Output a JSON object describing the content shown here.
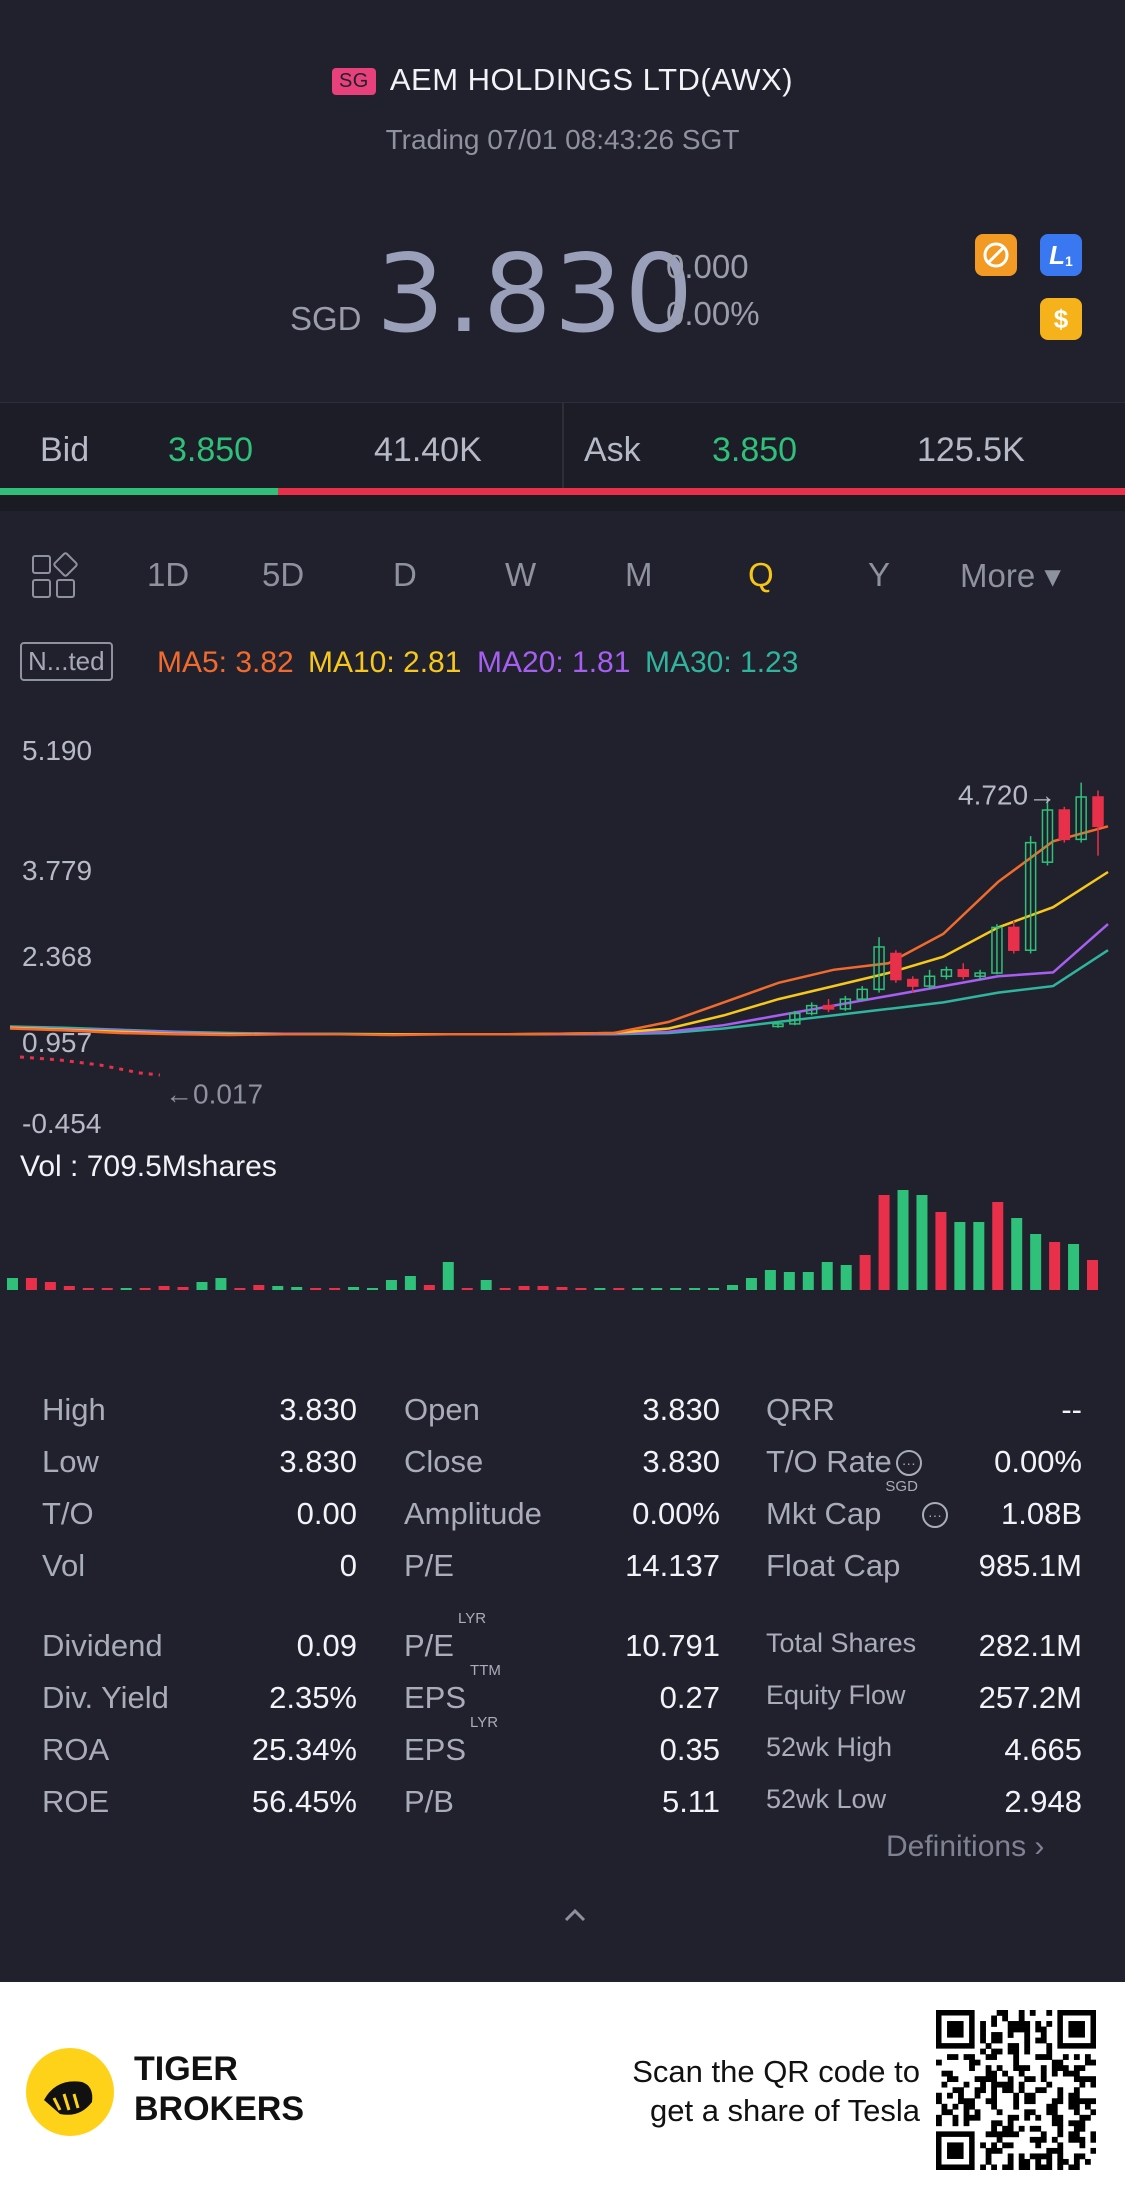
{
  "header": {
    "market_badge": "SG",
    "title": "AEM HOLDINGS LTD(AWX)",
    "status": "Trading 07/01 08:43:26 SGT"
  },
  "quote": {
    "currency": "SGD",
    "price": "3.830",
    "change": "0.000",
    "change_pct": "0.00%",
    "icons": [
      "no-short-sell-icon",
      "level1-icon",
      "dollar-icon"
    ],
    "icon_l1_text": "L",
    "icon_usd_text": "$"
  },
  "bidask": {
    "bid_label": "Bid",
    "bid_price": "3.850",
    "bid_size": "41.40K",
    "ask_label": "Ask",
    "ask_price": "3.850",
    "ask_size": "125.5K",
    "bid_ratio": 0.25
  },
  "tabs": {
    "items": [
      "1D",
      "5D",
      "D",
      "W",
      "M",
      "Q",
      "Y"
    ],
    "active": "Q",
    "more": "More ▾"
  },
  "indicators": {
    "adjust_label": "N...ted",
    "ma5": "MA5: 3.82",
    "ma10": "MA10: 2.81",
    "ma20": "MA20: 1.81",
    "ma30": "MA30: 1.23",
    "colors": {
      "ma5": "#f26b2c",
      "ma10": "#f7c81b",
      "ma20": "#a65ff0",
      "ma30": "#2fb59e"
    }
  },
  "chart_data": {
    "type": "candlestick",
    "y_ticks": [
      "5.190",
      "3.779",
      "2.368",
      "0.957",
      "-0.454"
    ],
    "ylim": [
      -0.454,
      5.19
    ],
    "max_label": "4.720→",
    "min_label": "←0.017",
    "recent_candles": [
      {
        "o": 0.98,
        "c": 1.02,
        "h": 1.05,
        "l": 0.96
      },
      {
        "o": 1.02,
        "c": 1.18,
        "h": 1.22,
        "l": 1.0
      },
      {
        "o": 1.18,
        "c": 1.3,
        "h": 1.35,
        "l": 1.15
      },
      {
        "o": 1.3,
        "c": 1.25,
        "h": 1.4,
        "l": 1.2
      },
      {
        "o": 1.25,
        "c": 1.4,
        "h": 1.45,
        "l": 1.22
      },
      {
        "o": 1.4,
        "c": 1.55,
        "h": 1.6,
        "l": 1.38
      },
      {
        "o": 1.55,
        "c": 2.2,
        "h": 2.35,
        "l": 1.5
      },
      {
        "o": 2.1,
        "c": 1.7,
        "h": 2.15,
        "l": 1.65
      },
      {
        "o": 1.7,
        "c": 1.6,
        "h": 1.75,
        "l": 1.5
      },
      {
        "o": 1.6,
        "c": 1.75,
        "h": 1.85,
        "l": 1.55
      },
      {
        "o": 1.75,
        "c": 1.85,
        "h": 1.9,
        "l": 1.7
      },
      {
        "o": 1.85,
        "c": 1.75,
        "h": 1.95,
        "l": 1.7
      },
      {
        "o": 1.75,
        "c": 1.8,
        "h": 1.85,
        "l": 1.7
      },
      {
        "o": 1.8,
        "c": 2.5,
        "h": 2.55,
        "l": 1.78
      },
      {
        "o": 2.5,
        "c": 2.15,
        "h": 2.6,
        "l": 2.1
      },
      {
        "o": 2.15,
        "c": 3.8,
        "h": 3.9,
        "l": 2.1
      },
      {
        "o": 3.5,
        "c": 4.3,
        "h": 4.45,
        "l": 3.45
      },
      {
        "o": 4.3,
        "c": 3.85,
        "h": 4.35,
        "l": 3.8
      },
      {
        "o": 3.85,
        "c": 4.5,
        "h": 4.72,
        "l": 3.8
      },
      {
        "o": 4.5,
        "c": 4.05,
        "h": 4.6,
        "l": 3.6
      }
    ],
    "ma5": [
      0.95,
      0.92,
      0.88,
      0.86,
      0.85,
      0.86,
      0.86,
      0.85,
      0.86,
      0.86,
      0.87,
      0.88,
      1.05,
      1.35,
      1.65,
      1.85,
      1.95,
      2.4,
      3.2,
      3.82,
      4.05
    ],
    "ma10": [
      0.96,
      0.93,
      0.9,
      0.87,
      0.86,
      0.86,
      0.86,
      0.86,
      0.86,
      0.86,
      0.87,
      0.88,
      0.95,
      1.15,
      1.4,
      1.6,
      1.8,
      2.05,
      2.5,
      2.81,
      3.35
    ],
    "ma20": [
      0.97,
      0.94,
      0.92,
      0.89,
      0.87,
      0.87,
      0.86,
      0.86,
      0.86,
      0.86,
      0.86,
      0.87,
      0.9,
      1.0,
      1.15,
      1.3,
      1.45,
      1.6,
      1.75,
      1.81,
      2.55
    ],
    "ma30": [
      0.98,
      0.96,
      0.93,
      0.9,
      0.88,
      0.87,
      0.87,
      0.86,
      0.86,
      0.86,
      0.86,
      0.86,
      0.88,
      0.95,
      1.05,
      1.15,
      1.25,
      1.35,
      1.5,
      1.6,
      2.15
    ],
    "volume_label": "Vol  : 709.5Mshares",
    "volume_bars": [
      {
        "v": 0.12,
        "up": true
      },
      {
        "v": 0.12,
        "up": false
      },
      {
        "v": 0.08,
        "up": false
      },
      {
        "v": 0.04,
        "up": false
      },
      {
        "v": 0.02,
        "up": false
      },
      {
        "v": 0.02,
        "up": false
      },
      {
        "v": 0.02,
        "up": true
      },
      {
        "v": 0.02,
        "up": false
      },
      {
        "v": 0.04,
        "up": false
      },
      {
        "v": 0.03,
        "up": false
      },
      {
        "v": 0.08,
        "up": true
      },
      {
        "v": 0.12,
        "up": true
      },
      {
        "v": 0.02,
        "up": false
      },
      {
        "v": 0.05,
        "up": false
      },
      {
        "v": 0.04,
        "up": true
      },
      {
        "v": 0.03,
        "up": true
      },
      {
        "v": 0.02,
        "up": false
      },
      {
        "v": 0.02,
        "up": false
      },
      {
        "v": 0.03,
        "up": true
      },
      {
        "v": 0.02,
        "up": true
      },
      {
        "v": 0.1,
        "up": true
      },
      {
        "v": 0.14,
        "up": true
      },
      {
        "v": 0.05,
        "up": false
      },
      {
        "v": 0.28,
        "up": true
      },
      {
        "v": 0.02,
        "up": false
      },
      {
        "v": 0.1,
        "up": true
      },
      {
        "v": 0.02,
        "up": false
      },
      {
        "v": 0.04,
        "up": false
      },
      {
        "v": 0.04,
        "up": false
      },
      {
        "v": 0.03,
        "up": false
      },
      {
        "v": 0.02,
        "up": false
      },
      {
        "v": 0.0,
        "up": true
      },
      {
        "v": 0.02,
        "up": false
      },
      {
        "v": 0.0,
        "up": true
      },
      {
        "v": 0.0,
        "up": true
      },
      {
        "v": 0.02,
        "up": true
      },
      {
        "v": 0.02,
        "up": true
      },
      {
        "v": 0.02,
        "up": true
      },
      {
        "v": 0.05,
        "up": true
      },
      {
        "v": 0.12,
        "up": true
      },
      {
        "v": 0.2,
        "up": true
      },
      {
        "v": 0.18,
        "up": true
      },
      {
        "v": 0.18,
        "up": true
      },
      {
        "v": 0.28,
        "up": true
      },
      {
        "v": 0.25,
        "up": true
      },
      {
        "v": 0.35,
        "up": false
      },
      {
        "v": 0.95,
        "up": false
      },
      {
        "v": 1.0,
        "up": true
      },
      {
        "v": 0.95,
        "up": true
      },
      {
        "v": 0.78,
        "up": false
      },
      {
        "v": 0.68,
        "up": true
      },
      {
        "v": 0.68,
        "up": true
      },
      {
        "v": 0.88,
        "up": false
      },
      {
        "v": 0.72,
        "up": true
      },
      {
        "v": 0.56,
        "up": true
      },
      {
        "v": 0.48,
        "up": false
      },
      {
        "v": 0.46,
        "up": true
      },
      {
        "v": 0.3,
        "up": false
      }
    ]
  },
  "stats": {
    "col1": [
      {
        "label": "High",
        "value": "3.830"
      },
      {
        "label": "Low",
        "value": "3.830"
      },
      {
        "label": "T/O",
        "value": "0.00"
      },
      {
        "label": "Vol",
        "value": "0"
      },
      {
        "label": "Dividend",
        "value": "0.09"
      },
      {
        "label": "Div. Yield",
        "value": "2.35%"
      },
      {
        "label": "ROA",
        "value": "25.34%"
      },
      {
        "label": "ROE",
        "value": "56.45%"
      }
    ],
    "col2": [
      {
        "label": "Open",
        "value": "3.830"
      },
      {
        "label": "Close",
        "value": "3.830"
      },
      {
        "label": "Amplitude",
        "value": "0.00%"
      },
      {
        "label": "P/E",
        "value": "14.137"
      },
      {
        "label": "P/E",
        "sup": "LYR",
        "value": "10.791"
      },
      {
        "label": "EPS",
        "sup": "TTM",
        "value": "0.27"
      },
      {
        "label": "EPS",
        "sup": "LYR",
        "value": "0.35"
      },
      {
        "label": "P/B",
        "value": "5.11"
      }
    ],
    "col3": [
      {
        "label": "QRR",
        "value": "--"
      },
      {
        "label": "T/O Rate",
        "value": "0.00%"
      },
      {
        "label": "Mkt Cap",
        "sup": "SGD",
        "value": "1.08B"
      },
      {
        "label": "Float Cap",
        "value": "985.1M"
      },
      {
        "label": "Total Shares",
        "value": "282.1M"
      },
      {
        "label": "Equity Flow",
        "value": "257.2M"
      },
      {
        "label": "52wk High",
        "value": "4.665"
      },
      {
        "label": "52wk Low",
        "value": "2.948"
      }
    ],
    "definitions": "Definitions ›"
  },
  "footer": {
    "brand_line1": "TIGER",
    "brand_line2": "BROKERS",
    "promo_line1": "Scan the QR code to",
    "promo_line2": "get a share of Tesla"
  }
}
